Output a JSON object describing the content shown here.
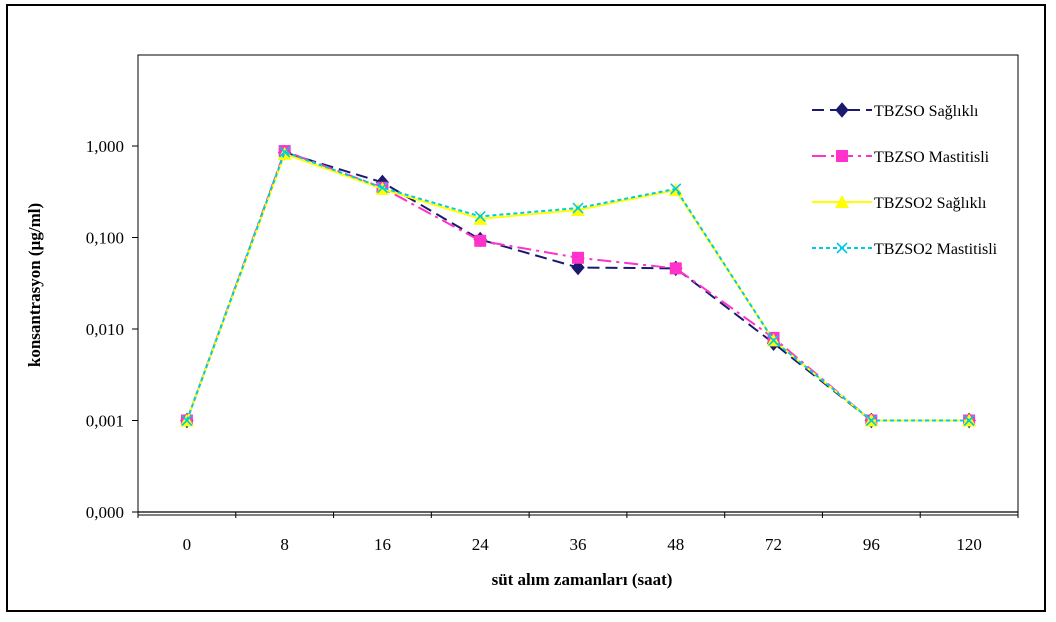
{
  "chart_data": {
    "type": "line",
    "xlabel": "süt alım zamanları (saat)",
    "ylabel": "konsantrasyon (µg/ml)",
    "y_scale": "log",
    "ylim": [
      0.0001,
      10
    ],
    "y_ticks": [
      {
        "value": 0.0001,
        "label": "0,000"
      },
      {
        "value": 0.001,
        "label": "0,001"
      },
      {
        "value": 0.01,
        "label": "0,010"
      },
      {
        "value": 0.1,
        "label": "0,100"
      },
      {
        "value": 1,
        "label": "1,000"
      }
    ],
    "categories": [
      "0",
      "8",
      "16",
      "24",
      "36",
      "48",
      "72",
      "96",
      "120"
    ],
    "grid": false,
    "legend_position": "top-right",
    "series": [
      {
        "name": "TBZSO Sağlıklı",
        "color": "#1a1a6e",
        "marker": "diamond",
        "dash": "12,6",
        "values": [
          0.001,
          0.85,
          0.4,
          0.095,
          0.047,
          0.046,
          0.007,
          0.001,
          0.001
        ]
      },
      {
        "name": "TBZSO Mastitisli",
        "color": "#ff33cc",
        "marker": "square",
        "dash": "14,5,3,5",
        "values": [
          0.001,
          0.88,
          0.35,
          0.092,
          0.06,
          0.046,
          0.008,
          0.001,
          0.001
        ]
      },
      {
        "name": "TBZSO2 Sağlıklı",
        "color": "#ffff00",
        "marker": "triangle",
        "dash": "",
        "values": [
          0.001,
          0.82,
          0.34,
          0.16,
          0.2,
          0.33,
          0.0075,
          0.001,
          0.001
        ]
      },
      {
        "name": "TBZSO2 Mastitisli",
        "color": "#00ccdd",
        "marker": "x",
        "dash": "4,3",
        "values": [
          0.001,
          0.86,
          0.35,
          0.17,
          0.21,
          0.34,
          0.0075,
          0.001,
          0.001
        ]
      }
    ]
  }
}
